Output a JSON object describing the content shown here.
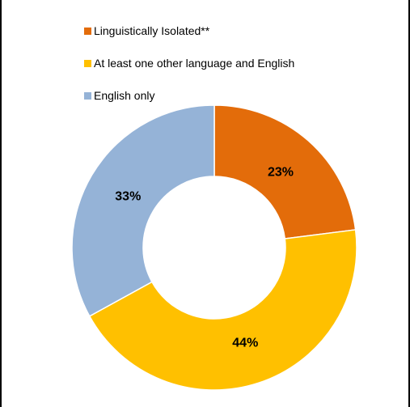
{
  "chart_data": {
    "type": "pie",
    "title": "",
    "legend_position": "top",
    "series": [
      {
        "name": "Linguistically Isolated**",
        "value": 23,
        "label": "23%",
        "color": "#E36C0A"
      },
      {
        "name": "At least one other language and English",
        "value": 44,
        "label": "44%",
        "color": "#FFC000"
      },
      {
        "name": "English only",
        "value": 33,
        "label": "33%",
        "color": "#95B3D7"
      }
    ]
  }
}
